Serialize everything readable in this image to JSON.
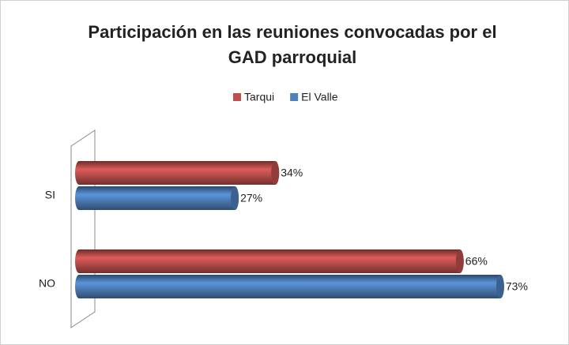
{
  "chart_data": {
    "type": "bar",
    "orientation": "horizontal",
    "style": "cylinder",
    "title": "Participación en las reuniones convocadas por el GAD parroquial",
    "categories": [
      "SI",
      "NO"
    ],
    "series": [
      {
        "name": "Tarqui",
        "color": "#c0504d",
        "values": [
          34,
          66
        ],
        "value_labels": [
          "34%",
          "66%"
        ]
      },
      {
        "name": "El Valle",
        "color": "#4f81bd",
        "values": [
          27,
          73
        ],
        "value_labels": [
          "27%",
          "73%"
        ]
      }
    ],
    "xlim": [
      0,
      80
    ],
    "legend": "top"
  }
}
